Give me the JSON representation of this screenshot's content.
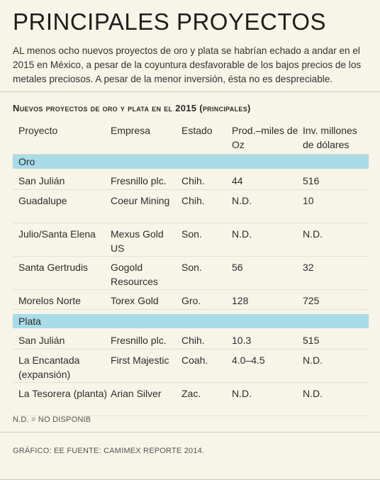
{
  "title": "PRINCIPALES PROYECTOS",
  "intro": "AL menos ocho nuevos proyectos de oro y plata se habrían echado a andar en el 2015 en México, a pesar de la coyuntura desfavorable de los bajos precios de los metales preciosos. A pesar de la menor inversión, ésta no es despreciable.",
  "table": {
    "title": "Nuevos proyectos de oro y plata en el 2015 (principales)",
    "headers": [
      "Proyecto",
      "Empresa",
      "Estado",
      "Prod.–miles de Oz",
      "Inv. millones de dólares"
    ],
    "sections": [
      {
        "label": "Oro",
        "rows": [
          [
            "San Julián",
            "Fresnillo plc.",
            "Chih.",
            "44",
            "516"
          ],
          [
            "Guadalupe",
            "Coeur Mining",
            "Chih.",
            "N.D.",
            "10"
          ],
          [
            "Julio/Santa Elena",
            "Mexus Gold US",
            "Son.",
            "N.D.",
            "N.D."
          ],
          [
            "Santa Gertrudis",
            "Gogold Resources",
            "Son.",
            "56",
            "32"
          ],
          [
            "Morelos Norte",
            "Torex Gold",
            "Gro.",
            "128",
            "725"
          ]
        ]
      },
      {
        "label": "Plata",
        "rows": [
          [
            "San Julián",
            "Fresnillo plc.",
            "Chih.",
            "10.3",
            "515"
          ],
          [
            "La Encantada (expansión)",
            "First Majestic",
            "Coah.",
            "4.0–4.5",
            "N.D."
          ],
          [
            "La Tesorera (planta)",
            "Arian Silver",
            "Zac.",
            "N.D.",
            "N.D."
          ]
        ]
      }
    ]
  },
  "note": "N.D. = NO DISPONIB",
  "source": "GRÁFICO: EE FUENTE: CAMIMEX REPORTE 2014."
}
